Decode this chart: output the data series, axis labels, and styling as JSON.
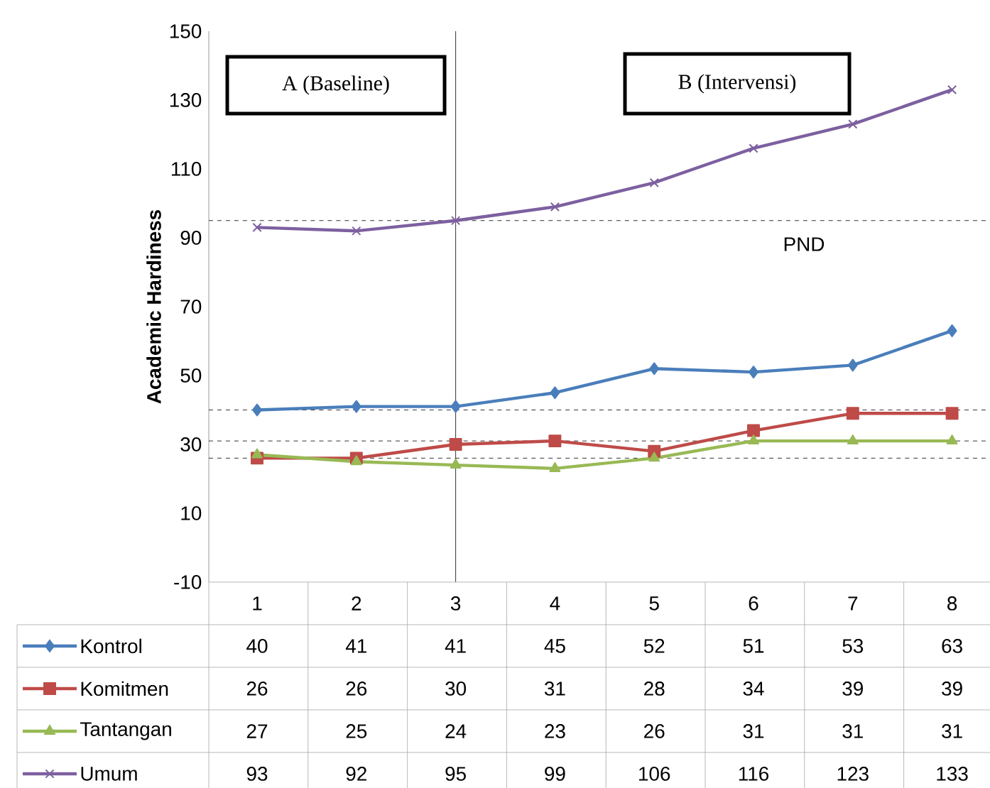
{
  "chart_data": {
    "type": "line",
    "ylabel": "Academic Hardiness",
    "categories": [
      "1",
      "2",
      "3",
      "4",
      "5",
      "6",
      "7",
      "8"
    ],
    "series": [
      {
        "name": "Kontrol",
        "color": "#4a7ebb",
        "marker": "diamond",
        "values": [
          40,
          41,
          41,
          45,
          52,
          51,
          53,
          63
        ]
      },
      {
        "name": "Komitmen",
        "color": "#be4b48",
        "marker": "square",
        "values": [
          26,
          26,
          30,
          31,
          28,
          34,
          39,
          39
        ]
      },
      {
        "name": "Tantangan",
        "color": "#98b954",
        "marker": "triangle",
        "values": [
          27,
          25,
          24,
          23,
          26,
          31,
          31,
          31
        ]
      },
      {
        "name": "Umum",
        "color": "#7d60a0",
        "marker": "cross",
        "values": [
          93,
          92,
          95,
          99,
          106,
          116,
          123,
          133
        ]
      }
    ],
    "ylim": [
      -10,
      150
    ],
    "yticks": [
      -10,
      10,
      30,
      50,
      70,
      90,
      110,
      130,
      150
    ],
    "grid": false,
    "legend": "bottom",
    "data_labels": true,
    "line_style": "solid",
    "ref_lines": [
      {
        "axis": "y",
        "value": 95,
        "line_style": "dashed"
      },
      {
        "axis": "y",
        "value": 40,
        "line_style": "dashed"
      },
      {
        "axis": "y",
        "value": 31,
        "line_style": "dashed"
      },
      {
        "axis": "y",
        "value": 26,
        "line_style": "dashed"
      },
      {
        "axis": "x",
        "value": "3",
        "line_style": "solid"
      }
    ],
    "annotations": [
      "A (Baseline)",
      "B (Intervensi)",
      "PND"
    ]
  }
}
